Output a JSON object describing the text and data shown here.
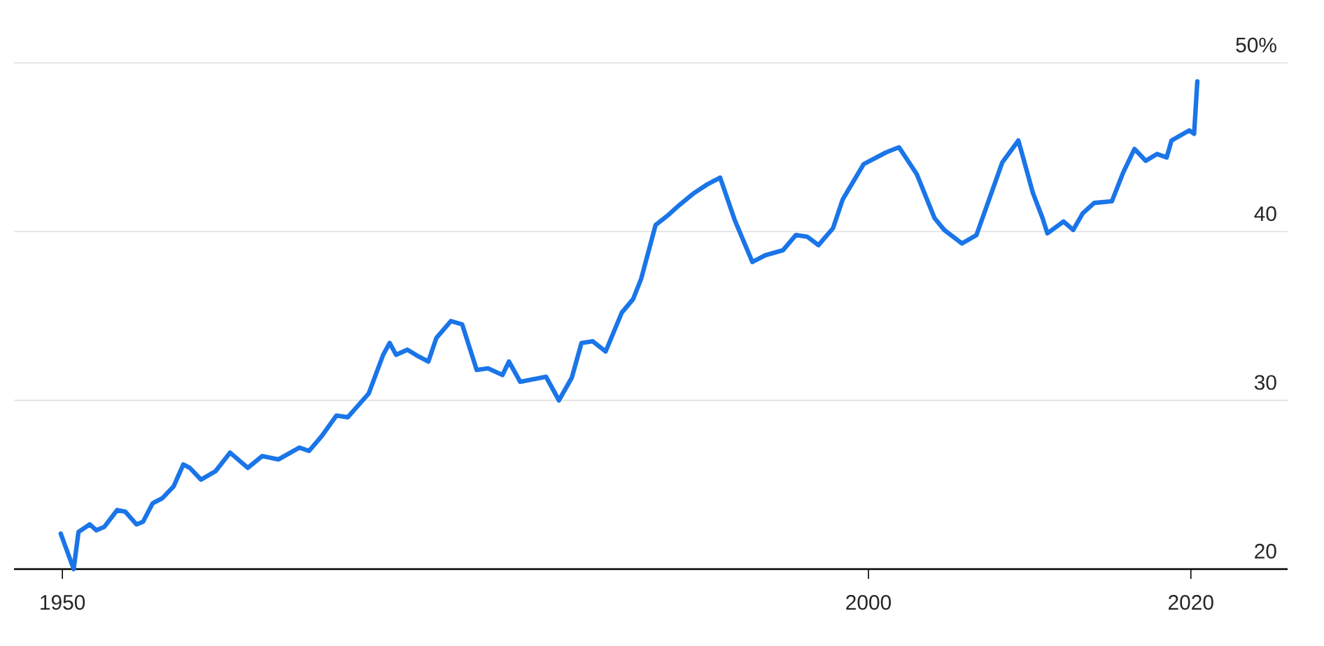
{
  "chart_data": {
    "type": "line",
    "color": "#1a75e8",
    "grid": "y",
    "xlim": [
      1947,
      2026
    ],
    "ylim": [
      20,
      50
    ],
    "xticks": [
      1950,
      2000,
      2020
    ],
    "yticks": [
      20,
      30,
      40,
      {
        "value": 50,
        "label": "50%"
      }
    ],
    "x": [
      1949.9,
      1950.7,
      1951.0,
      1951.7,
      1952.1,
      1952.6,
      1953.4,
      1953.9,
      1954.6,
      1955.0,
      1955.6,
      1956.2,
      1956.9,
      1957.5,
      1957.9,
      1958.6,
      1959.5,
      1960.4,
      1961.5,
      1962.4,
      1963.4,
      1964.7,
      1965.3,
      1966.1,
      1967.0,
      1967.7,
      1969.0,
      1969.9,
      1970.3,
      1970.7,
      1971.4,
      1972.1,
      1972.7,
      1973.2,
      1974.1,
      1974.8,
      1975.7,
      1976.4,
      1977.3,
      1977.7,
      1978.4,
      1980.0,
      1980.8,
      1981.6,
      1982.2,
      1982.9,
      1983.7,
      1984.7,
      1985.4,
      1985.9,
      1986.8,
      1987.6,
      1988.3,
      1989.2,
      1990.0,
      1990.8,
      1991.7,
      1992.8,
      1993.6,
      1994.7,
      1995.5,
      1996.2,
      1996.9,
      1997.8,
      1998.4,
      1999.7,
      2000.5,
      2001.1,
      2001.9,
      2003.0,
      2004.1,
      2004.7,
      2005.8,
      2006.7,
      2008.3,
      2009.3,
      2010.2,
      2010.8,
      2011.1,
      2012.1,
      2012.7,
      2013.3,
      2014.0,
      2015.1,
      2015.8,
      2016.5,
      2017.2,
      2017.9,
      2018.5,
      2018.8,
      2019.9,
      2020.2,
      2020.4
    ],
    "values": [
      22.1,
      20.0,
      22.2,
      22.65,
      22.3,
      22.5,
      23.5,
      23.4,
      22.65,
      22.8,
      23.9,
      24.2,
      24.9,
      26.2,
      26.0,
      25.3,
      25.8,
      26.9,
      26.0,
      26.7,
      26.5,
      27.2,
      27.0,
      27.9,
      29.1,
      29.0,
      30.4,
      32.7,
      33.4,
      32.7,
      33.0,
      32.6,
      32.3,
      33.7,
      34.7,
      34.5,
      31.8,
      31.9,
      31.5,
      32.3,
      31.1,
      31.4,
      30.0,
      31.35,
      33.4,
      33.5,
      32.9,
      35.2,
      36.0,
      37.2,
      40.4,
      41.0,
      41.6,
      42.3,
      42.8,
      43.2,
      40.7,
      38.2,
      38.6,
      38.9,
      39.8,
      39.7,
      39.2,
      40.2,
      41.9,
      44.0,
      44.4,
      44.7,
      45.0,
      43.4,
      40.8,
      40.1,
      39.3,
      39.8,
      44.1,
      45.4,
      42.3,
      40.8,
      39.9,
      40.6,
      40.1,
      41.1,
      41.7,
      41.8,
      43.5,
      44.9,
      44.2,
      44.6,
      44.4,
      45.4,
      46.0,
      45.8,
      48.9
    ]
  }
}
